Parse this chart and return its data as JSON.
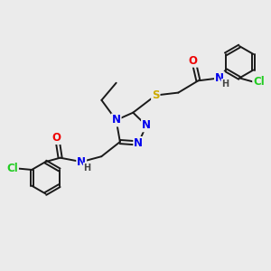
{
  "bg_color": "#ebebeb",
  "bond_color": "#1a1a1a",
  "bond_width": 1.4,
  "atom_colors": {
    "N": "#0000ee",
    "O": "#ee0000",
    "S": "#ccaa00",
    "Cl": "#22cc22",
    "C": "#1a1a1a",
    "H": "#444444"
  },
  "font_size_atom": 8.5,
  "font_size_small": 7.0,
  "fig_bg": "#ebebeb"
}
